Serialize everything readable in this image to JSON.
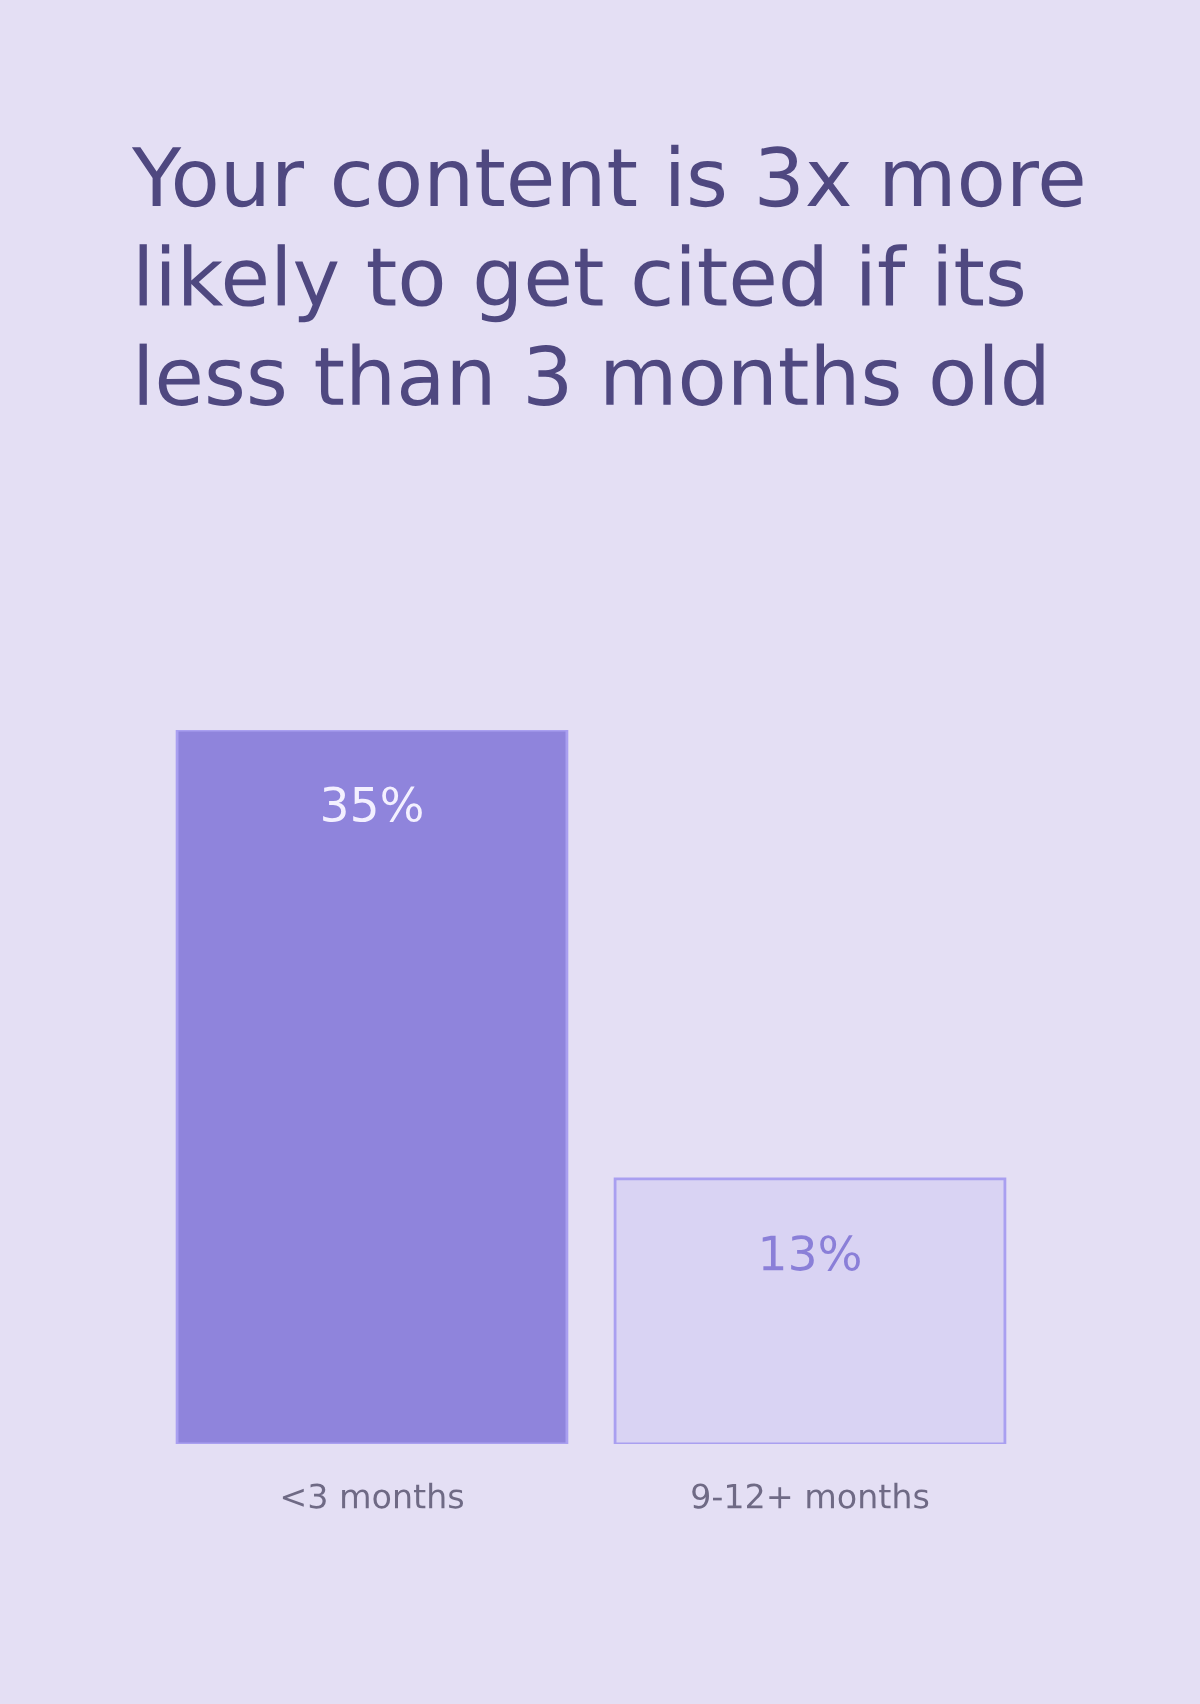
{
  "chart_data": {
    "type": "bar",
    "title": "Your content is 3x more likely to get cited if its less than 3 months old",
    "categories": [
      "<3 months",
      "9-12+ months"
    ],
    "values": [
      35,
      13
    ],
    "colors": [
      "#8f84dc",
      "#d9d3f3"
    ],
    "value_labels": [
      "35%",
      "13%"
    ],
    "grid": false,
    "legend": false,
    "tick_labels": "x"
  }
}
